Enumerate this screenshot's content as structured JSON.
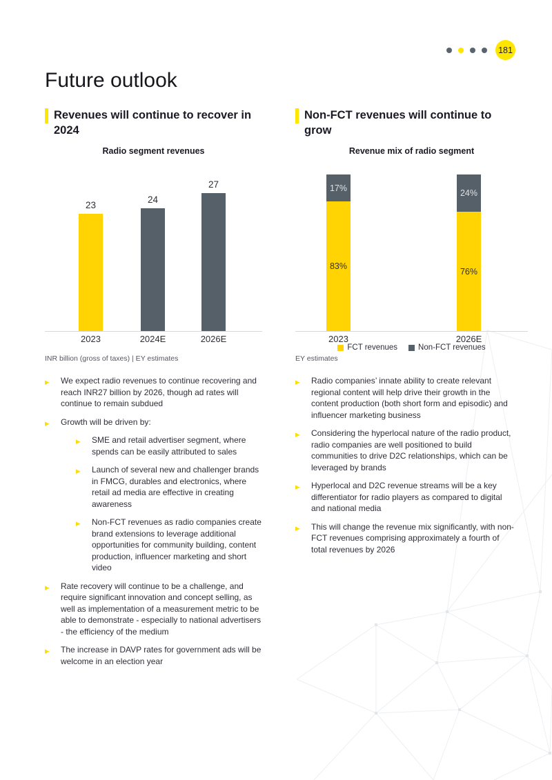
{
  "page": {
    "title": "Future outlook",
    "number": "181"
  },
  "pagination": {
    "dots": [
      "#5A6470",
      "#FFE600",
      "#5A6470",
      "#5A6470"
    ],
    "circle_color": "#FFE600"
  },
  "colors": {
    "accent_yellow": "#FFE600",
    "chart_yellow": "#FFD402",
    "chart_gray": "#566069",
    "ink": "#2E2E38"
  },
  "left_section": {
    "heading": "Revenues will continue to recover in 2024",
    "chart_footnote": "INR billion (gross of taxes) | EY estimates",
    "bullets": [
      {
        "text": "We expect radio revenues to continue recovering and reach INR27 billion by 2026, though ad rates will continue to remain subdued"
      },
      {
        "text": "Growth will be driven by:",
        "children": [
          "SME and retail advertiser segment, where spends can be easily attributed to sales",
          "Launch of several new and challenger brands in FMCG, durables and electronics, where retail ad media are effective in creating awareness",
          "Non-FCT revenues as radio companies create brand extensions to leverage additional opportunities for community building, content production, influencer marketing and short video"
        ]
      },
      {
        "text": "Rate recovery will continue to be a challenge, and require significant innovation and concept selling, as well as implementation of a measurement metric to be able to demonstrate - especially to national advertisers - the efficiency of the medium"
      },
      {
        "text": "The increase in DAVP rates for government ads will be welcome in an election year"
      }
    ]
  },
  "right_section": {
    "heading": "Non-FCT revenues will continue to grow",
    "chart_footnote": "EY estimates",
    "bullets": [
      {
        "text": "Radio companies’ innate ability to create relevant regional content will help drive their growth in the content production (both short form and episodic) and influencer marketing business"
      },
      {
        "text": "Considering the hyperlocal nature of the radio product, radio companies are well positioned to build communities to drive D2C relationships, which can be leveraged by brands"
      },
      {
        "text": "Hyperlocal and D2C revenue streams will be a key differentiator for radio players as compared to digital and national media"
      },
      {
        "text": "This will change the revenue mix significantly, with non-FCT revenues comprising approximately a fourth of total revenues by 2026"
      }
    ]
  },
  "chart_data": [
    {
      "type": "bar",
      "title": "Radio segment revenues",
      "categories": [
        "2023",
        "2024E",
        "2026E"
      ],
      "values": [
        23,
        24,
        27
      ],
      "data_labels": [
        "23",
        "24",
        "27"
      ],
      "bar_colors": [
        "#FFD402",
        "#566069",
        "#566069"
      ],
      "ylabel": "INR billion (gross of taxes)",
      "ylim": [
        0,
        30
      ],
      "grid": false,
      "legend_position": "none"
    },
    {
      "type": "bar",
      "subtype": "stacked-100pct",
      "title": "Revenue mix of radio segment",
      "categories": [
        "2023",
        "2026E"
      ],
      "series": [
        {
          "name": "FCT revenues",
          "color": "#FFD402",
          "values": [
            83,
            76
          ],
          "labels": [
            "83%",
            "76%"
          ]
        },
        {
          "name": "Non-FCT revenues",
          "color": "#566069",
          "values": [
            17,
            24
          ],
          "labels": [
            "17%",
            "24%"
          ]
        }
      ],
      "ylim": [
        0,
        100
      ],
      "grid": false,
      "legend_position": "bottom"
    }
  ]
}
